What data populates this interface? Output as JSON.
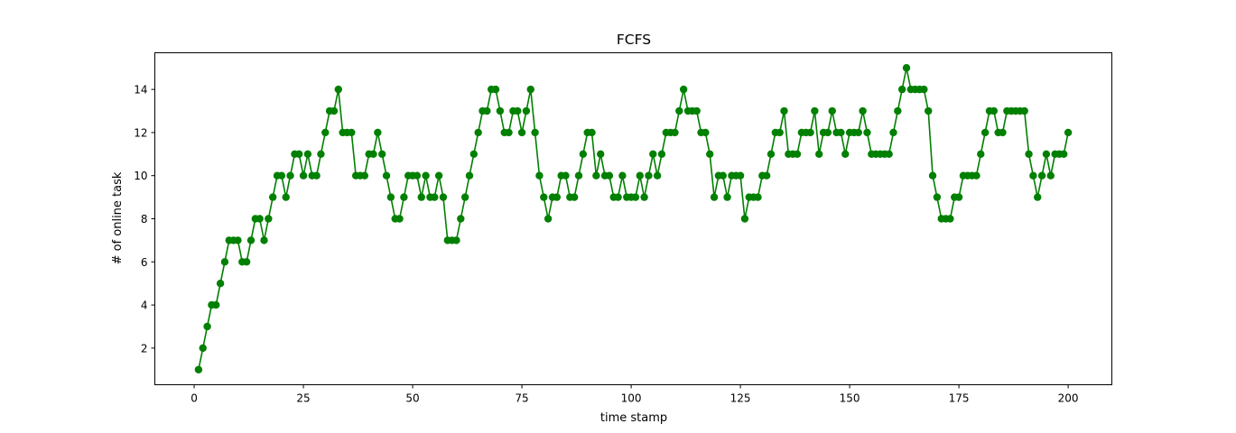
{
  "chart_data": {
    "type": "line",
    "title": "FCFS",
    "xlabel": "time stamp",
    "ylabel": "# of online task",
    "xlim": [
      -9,
      210
    ],
    "ylim": [
      0.3,
      15.7
    ],
    "xticks": [
      0,
      25,
      50,
      75,
      100,
      125,
      150,
      175,
      200
    ],
    "yticks": [
      2,
      4,
      6,
      8,
      10,
      12,
      14
    ],
    "grid": false,
    "legend": "none",
    "marker": "circle",
    "color": "#008000",
    "series": [
      {
        "x": [
          1,
          2,
          3,
          4,
          5,
          6,
          7,
          8,
          9,
          10,
          11,
          12,
          13,
          14,
          15,
          16,
          17,
          18,
          19,
          20,
          21,
          22,
          23,
          24,
          25,
          26,
          27,
          28,
          29,
          30,
          31,
          32,
          33,
          34,
          35,
          36,
          37,
          38,
          39,
          40,
          41,
          42,
          43,
          44,
          45,
          46,
          47,
          48,
          49,
          50,
          51,
          52,
          53,
          54,
          55,
          56,
          57,
          58,
          59,
          60,
          61,
          62,
          63,
          64,
          65,
          66,
          67,
          68,
          69,
          70,
          71,
          72,
          73,
          74,
          75,
          76,
          77,
          78,
          79,
          80,
          81,
          82,
          83,
          84,
          85,
          86,
          87,
          88,
          89,
          90,
          91,
          92,
          93,
          94,
          95,
          96,
          97,
          98,
          99,
          100,
          101,
          102,
          103,
          104,
          105,
          106,
          107,
          108,
          109,
          110,
          111,
          112,
          113,
          114,
          115,
          116,
          117,
          118,
          119,
          120,
          121,
          122,
          123,
          124,
          125,
          126,
          127,
          128,
          129,
          130,
          131,
          132,
          133,
          134,
          135,
          136,
          137,
          138,
          139,
          140,
          141,
          142,
          143,
          144,
          145,
          146,
          147,
          148,
          149,
          150,
          151,
          152,
          153,
          154,
          155,
          156,
          157,
          158,
          159,
          160,
          161,
          162,
          163,
          164,
          165,
          166,
          167,
          168,
          169,
          170,
          171,
          172,
          173,
          174,
          175,
          176,
          177,
          178,
          179,
          180,
          181,
          182,
          183,
          184,
          185,
          186,
          187,
          188,
          189,
          190,
          191,
          192,
          193,
          194,
          195,
          196,
          197,
          198,
          199,
          200
        ],
        "values": [
          1,
          2,
          3,
          4,
          4,
          5,
          6,
          7,
          7,
          7,
          6,
          6,
          7,
          8,
          8,
          7,
          8,
          9,
          10,
          10,
          9,
          10,
          11,
          11,
          10,
          11,
          10,
          10,
          11,
          12,
          13,
          13,
          14,
          12,
          12,
          12,
          10,
          10,
          10,
          11,
          11,
          12,
          11,
          10,
          9,
          8,
          8,
          9,
          10,
          10,
          10,
          9,
          10,
          9,
          9,
          10,
          9,
          7,
          7,
          7,
          8,
          9,
          10,
          11,
          12,
          13,
          13,
          14,
          14,
          13,
          12,
          12,
          13,
          13,
          12,
          13,
          14,
          12,
          10,
          9,
          8,
          9,
          9,
          10,
          10,
          9,
          9,
          10,
          11,
          12,
          12,
          10,
          11,
          10,
          10,
          9,
          9,
          10,
          9,
          9,
          9,
          10,
          9,
          10,
          11,
          10,
          11,
          12,
          12,
          12,
          13,
          14,
          13,
          13,
          13,
          12,
          12,
          11,
          9,
          10,
          10,
          9,
          10,
          10,
          10,
          8,
          9,
          9,
          9,
          10,
          10,
          11,
          12,
          12,
          13,
          11,
          11,
          11,
          12,
          12,
          12,
          13,
          11,
          12,
          12,
          13,
          12,
          12,
          11,
          12,
          12,
          12,
          13,
          12,
          11,
          11,
          11,
          11,
          11,
          12,
          13,
          14,
          15,
          14,
          14,
          14,
          14,
          13,
          10,
          9,
          8,
          8,
          8,
          9,
          9,
          10,
          10,
          10,
          10,
          11,
          12,
          13,
          13,
          12,
          12,
          13,
          13,
          13,
          13,
          13,
          11,
          10,
          9,
          10,
          11,
          10,
          11,
          11,
          11,
          12
        ]
      }
    ]
  }
}
